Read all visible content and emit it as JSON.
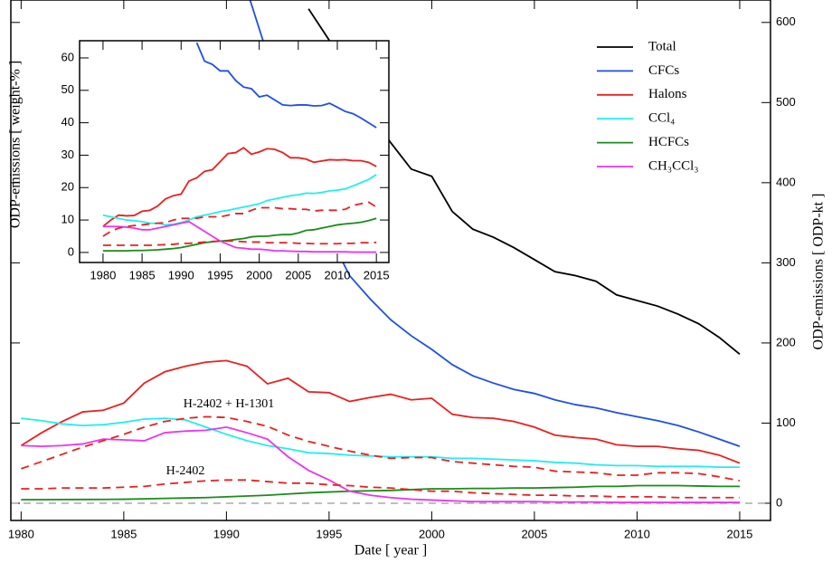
{
  "chart_data": [
    {
      "type": "line",
      "x_label": "Date [ year ]",
      "y_label": "ODP-emissions [ ODP-kt ]",
      "y_axis_side": "right",
      "x": [
        1980,
        1981,
        1982,
        1983,
        1984,
        1985,
        1986,
        1987,
        1988,
        1989,
        1990,
        1991,
        1992,
        1993,
        1994,
        1995,
        1996,
        1997,
        1998,
        1999,
        2000,
        2001,
        2002,
        2003,
        2004,
        2005,
        2006,
        2007,
        2008,
        2009,
        2010,
        2011,
        2012,
        2013,
        2014,
        2015
      ],
      "xlim": [
        1979.5,
        2016.5
      ],
      "xticks": [
        1980,
        1985,
        1990,
        1995,
        2000,
        2005,
        2010,
        2015
      ],
      "ylim": [
        -21.5,
        628
      ],
      "yticks": [
        0,
        100,
        200,
        300,
        400,
        500,
        600
      ],
      "reference_line": 0,
      "series": [
        {
          "name": "Total",
          "color": "#000000",
          "values": [
            null,
            null,
            null,
            null,
            null,
            null,
            null,
            null,
            null,
            null,
            null,
            null,
            null,
            null,
            617,
            578,
            530,
            487,
            450,
            417,
            408,
            364,
            342,
            332,
            319,
            304,
            289,
            284,
            277,
            260,
            253,
            246,
            236,
            224,
            207,
            186
          ]
        },
        {
          "name": "CFCs",
          "color": "#1f4fe6",
          "values": [
            null,
            null,
            null,
            null,
            null,
            null,
            null,
            null,
            null,
            null,
            null,
            640,
            560,
            470,
            400,
            335,
            284,
            255,
            229,
            209,
            192,
            173,
            159,
            150,
            142,
            137,
            129,
            123,
            119,
            113,
            108,
            103,
            97,
            89,
            80,
            71
          ]
        },
        {
          "name": "Halons",
          "color": "#e8211f",
          "values": [
            72,
            88,
            102,
            114,
            116,
            125,
            150,
            164,
            171,
            176,
            178,
            171,
            149,
            156,
            139,
            138,
            127,
            132,
            136,
            129,
            131,
            111,
            107,
            106,
            102,
            95,
            85,
            82,
            80,
            73,
            71,
            71,
            68,
            66,
            60,
            50
          ]
        },
        {
          "name": "CCl₄",
          "color": "#22eeee",
          "values": [
            106,
            103,
            99,
            97,
            98,
            101,
            105,
            106,
            104,
            95,
            86,
            78,
            72,
            68,
            63,
            62,
            60,
            59,
            58,
            58,
            58,
            56,
            56,
            55,
            54,
            53,
            51,
            50,
            48,
            47,
            47,
            46,
            46,
            46,
            45,
            45
          ]
        },
        {
          "name": "HCFCs",
          "color": "#1a8c1a",
          "values": [
            4.5,
            4.5,
            4.6,
            4.7,
            4.8,
            5,
            5.5,
            6,
            6.5,
            7,
            8,
            9,
            10,
            11.5,
            13,
            14,
            15,
            15.5,
            16,
            17,
            18,
            18,
            18.5,
            18.5,
            19,
            19,
            19.5,
            20,
            21,
            21,
            22,
            22,
            22,
            21.5,
            21,
            21
          ]
        },
        {
          "name": "CH₃CCl₃",
          "color": "#ee33ee",
          "values": [
            72,
            71,
            72,
            74,
            80,
            79,
            78,
            88,
            90,
            91,
            95,
            88,
            80,
            58,
            41,
            29,
            15,
            10,
            7,
            5,
            4,
            3,
            2,
            2,
            2,
            2,
            1.5,
            1.5,
            1.5,
            1,
            1,
            1,
            1,
            1,
            1,
            1
          ]
        },
        {
          "color": "#e8211f",
          "dash": true,
          "values": [
            43,
            52,
            61,
            70,
            78,
            86,
            95,
            102,
            106,
            108,
            107,
            102,
            96,
            85,
            77,
            71,
            65,
            60,
            56,
            57,
            57,
            52,
            50,
            48,
            46,
            45,
            40,
            39,
            38,
            35,
            35,
            38,
            38,
            37,
            33,
            28
          ]
        },
        {
          "color": "#e8211f",
          "dash": true,
          "values": [
            18,
            18,
            19,
            19,
            19,
            20,
            21,
            24,
            26,
            28,
            29,
            29,
            27,
            25,
            25,
            23,
            22,
            20,
            19,
            17,
            15,
            15,
            13,
            12,
            11,
            10,
            10,
            9,
            9,
            8,
            8,
            8,
            7,
            7,
            7,
            7
          ]
        }
      ],
      "annotations": [
        {
          "text": "H-2402 + H-1301",
          "color": "#e8211f"
        },
        {
          "text": "H-2402",
          "color": "#e8211f"
        }
      ]
    },
    {
      "type": "line",
      "y_label": "ODP-emissions [ weight-% ]",
      "y_axis_side": "left",
      "x": [
        1980,
        1981,
        1982,
        1983,
        1984,
        1985,
        1986,
        1987,
        1988,
        1989,
        1990,
        1991,
        1992,
        1993,
        1994,
        1995,
        1996,
        1997,
        1998,
        1999,
        2000,
        2001,
        2002,
        2003,
        2004,
        2005,
        2006,
        2007,
        2008,
        2009,
        2010,
        2011,
        2012,
        2013,
        2014,
        2015
      ],
      "xlim": [
        1977,
        2016.6
      ],
      "xticks": [
        1980,
        1985,
        1990,
        1995,
        2000,
        2005,
        2010,
        2015
      ],
      "ylim": [
        -3.1,
        65.3
      ],
      "yticks": [
        0,
        10,
        20,
        30,
        40,
        50,
        60
      ],
      "series": [
        {
          "color": "#1f4fe6",
          "values": [
            null,
            null,
            null,
            null,
            null,
            null,
            null,
            null,
            null,
            null,
            null,
            null,
            64.7,
            59,
            58,
            56,
            56,
            53,
            51,
            50.5,
            48,
            48.5,
            47,
            45.5,
            45.3,
            45.5,
            45.5,
            45.2,
            45.3,
            46,
            44.8,
            43.5,
            42.8,
            41.5,
            40,
            38.5
          ]
        },
        {
          "color": "#e8211f",
          "values": [
            8,
            10,
            11.5,
            11.3,
            11.4,
            12.7,
            13,
            14.3,
            16.5,
            17.5,
            18,
            22,
            23,
            25,
            25.5,
            28,
            30.5,
            30.8,
            32.3,
            30.3,
            31,
            32,
            31.8,
            30.8,
            29.2,
            29.2,
            28.8,
            27.8,
            28.2,
            28.6,
            28.5,
            28.6,
            28.3,
            28.3,
            27.8,
            26.5
          ]
        },
        {
          "color": "#22eeee",
          "values": [
            11.5,
            11,
            10.5,
            10,
            9.8,
            9.5,
            9,
            9,
            8.5,
            8.7,
            9.2,
            10,
            11,
            11.5,
            12,
            12.6,
            13,
            13.5,
            14,
            14.5,
            15,
            16,
            16.5,
            17,
            17.5,
            17.8,
            18.3,
            18.2,
            18.5,
            19,
            19.2,
            19.6,
            20.5,
            21.5,
            22.5,
            24
          ]
        },
        {
          "color": "#1a8c1a",
          "values": [
            0.5,
            0.5,
            0.5,
            0.5,
            0.6,
            0.6,
            0.7,
            0.8,
            1,
            1.2,
            1.5,
            2,
            2.5,
            3,
            3.3,
            3.5,
            3.7,
            4,
            4.3,
            4.8,
            5,
            5,
            5.3,
            5.5,
            5.5,
            6,
            6.8,
            7,
            7.5,
            8,
            8.5,
            8.8,
            9,
            9.3,
            9.8,
            10.5
          ]
        },
        {
          "color": "#ee33ee",
          "values": [
            8,
            8,
            8,
            7.8,
            7.5,
            7,
            7,
            7.5,
            8,
            8.5,
            9,
            9.5,
            8,
            6.5,
            5,
            3.5,
            2.5,
            1.5,
            1.3,
            1,
            1,
            0.8,
            0.5,
            0.5,
            0.4,
            0.3,
            0.3,
            0.2,
            0.2,
            0.2,
            0.2,
            0.2,
            0.1,
            0.1,
            0.1,
            0.1
          ]
        },
        {
          "color": "#e8211f",
          "dash": true,
          "values": [
            5,
            6.5,
            7.5,
            8,
            8.3,
            8.5,
            8.8,
            9,
            9.2,
            10,
            10.5,
            10.5,
            10.5,
            11,
            11,
            11,
            11.5,
            12,
            12,
            13,
            13.8,
            13.8,
            13.8,
            13.5,
            13.5,
            13.3,
            13.3,
            12.8,
            13,
            13,
            13,
            13.3,
            14.5,
            15,
            15.5,
            14
          ]
        },
        {
          "color": "#e8211f",
          "dash": true,
          "values": [
            2.2,
            2.2,
            2.2,
            2.2,
            2.2,
            2.2,
            2.2,
            2.3,
            2.4,
            2.5,
            2.8,
            2.8,
            3,
            3.2,
            3.4,
            3.5,
            3.5,
            3.5,
            3.3,
            3.2,
            3.2,
            3,
            3,
            3,
            3,
            2.8,
            2.8,
            2.7,
            2.7,
            2.7,
            2.7,
            2.8,
            2.8,
            3,
            3,
            3.1
          ]
        }
      ]
    }
  ]
}
